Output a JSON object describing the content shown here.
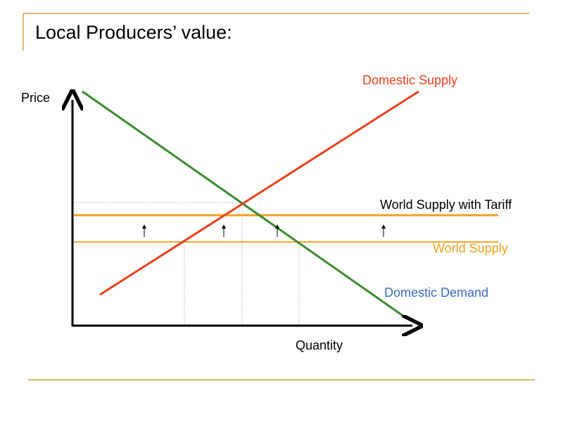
{
  "title": "Local Producers’ value:",
  "axes": {
    "y_label": "Price",
    "x_label": "Quantity"
  },
  "curves": {
    "domestic_supply": "Domestic Supply",
    "world_supply_with_tariff": "World Supply with Tariff",
    "world_supply": "World Supply",
    "domestic_demand": "Domestic Demand"
  }
}
